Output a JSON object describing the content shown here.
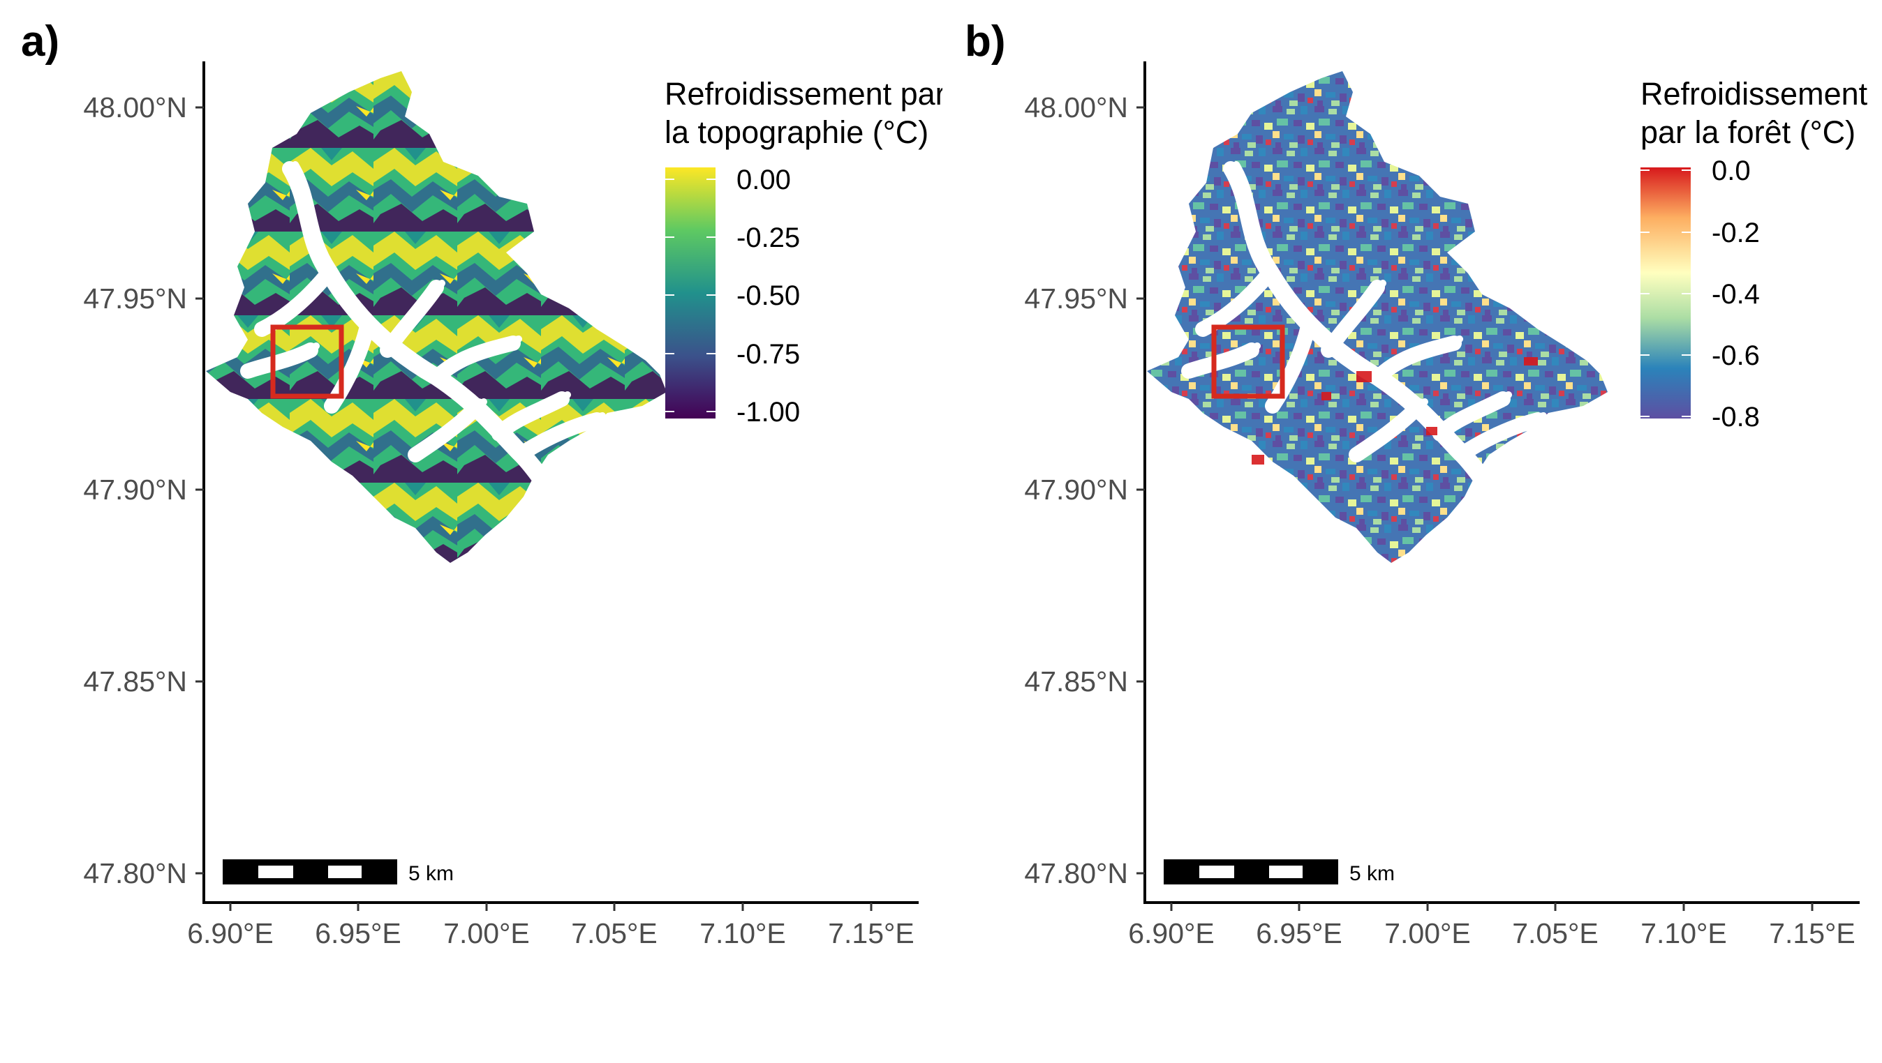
{
  "panels": [
    {
      "label": "a)",
      "legend": {
        "title_line1": "Refroidissement par",
        "title_line2": "la topographie (°C)",
        "palette": "viridis",
        "stops": [
          "#fde725",
          "#5ec962",
          "#21918c",
          "#3b528b",
          "#440154"
        ],
        "ticks": [
          "0.00",
          "-0.25",
          "-0.50",
          "-0.75",
          "-1.00"
        ]
      },
      "scalebar_label": "5 km"
    },
    {
      "label": "b)",
      "legend": {
        "title_line1": "Refroidissement",
        "title_line2": "par la forêt (°C)",
        "palette": "spectral",
        "stops": [
          "#d7191c",
          "#fdae61",
          "#ffffbf",
          "#abdda4",
          "#2b83ba",
          "#5e4fa2"
        ],
        "ticks": [
          "0.0",
          "-0.2",
          "-0.4",
          "-0.6",
          "-0.8"
        ]
      },
      "scalebar_label": "5 km"
    }
  ],
  "axes": {
    "y_ticks": [
      "48.00°N",
      "47.95°N",
      "47.90°N",
      "47.85°N",
      "47.80°N"
    ],
    "x_ticks": [
      "6.90°E",
      "6.95°E",
      "7.00°E",
      "7.05°E",
      "7.10°E",
      "7.15°E"
    ]
  },
  "colors": {
    "highlight_box": "#d62a1e",
    "river": "#ffffff"
  }
}
